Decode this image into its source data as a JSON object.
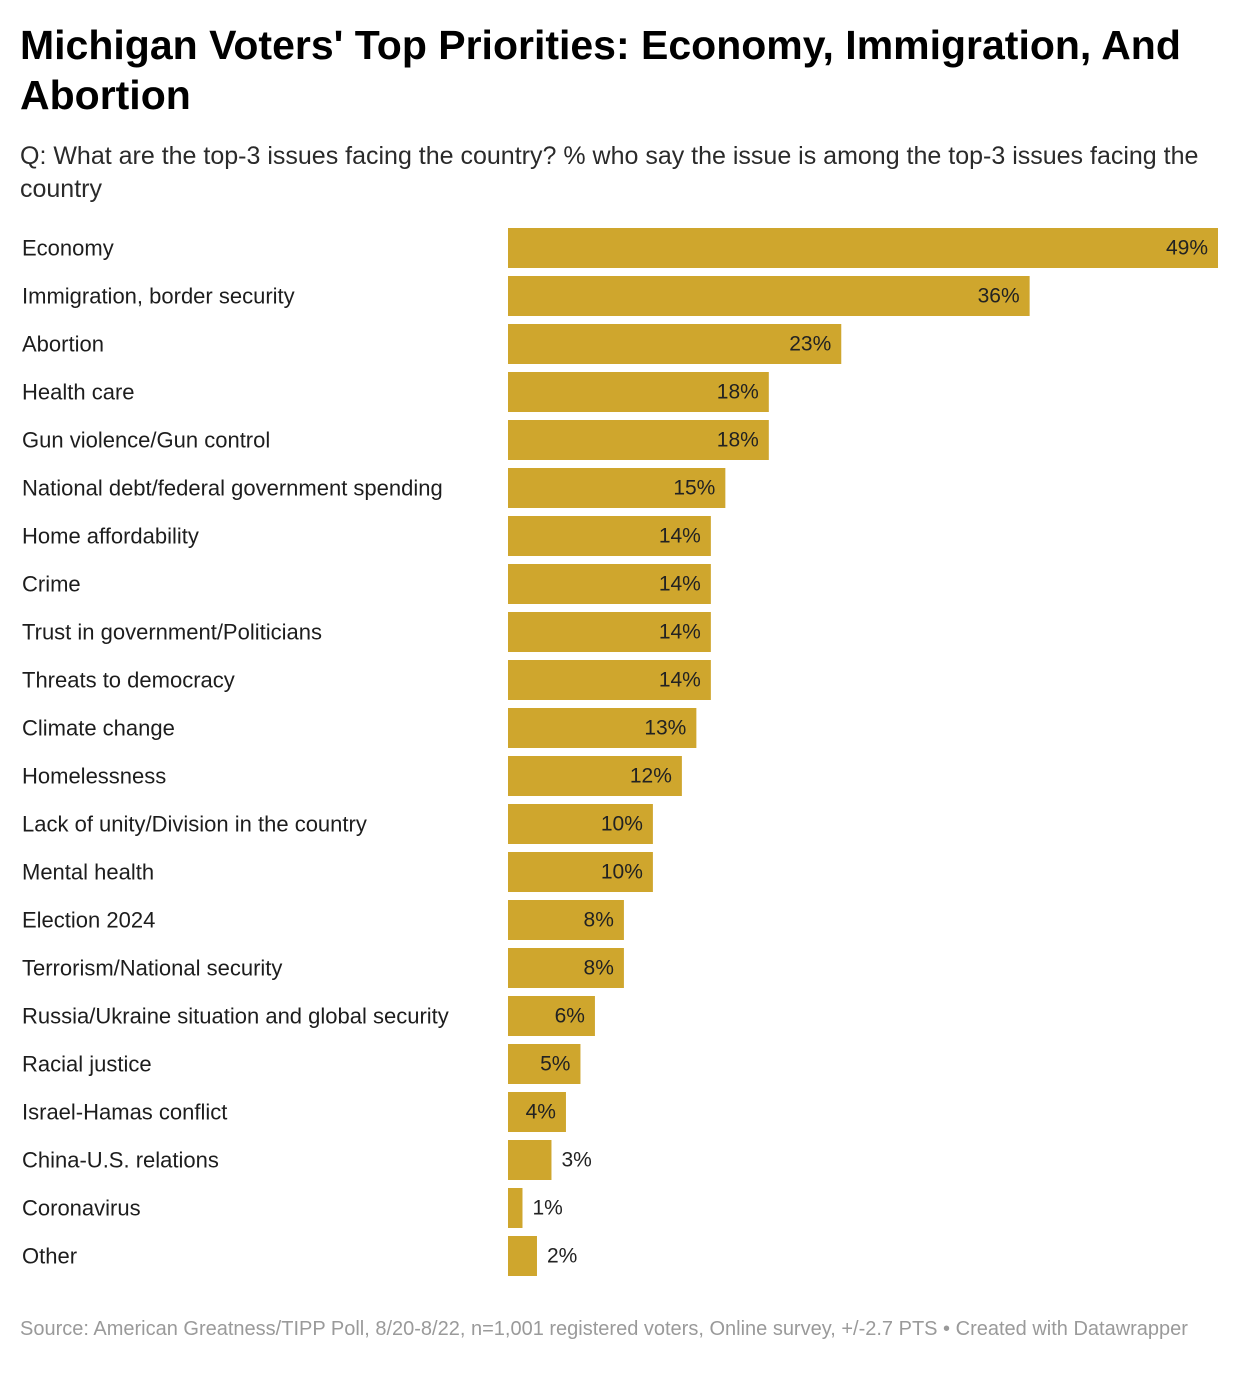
{
  "title": "Michigan Voters' Top Priorities: Economy, Immigration, And Abortion",
  "subtitle": "Q: What are the top-3 issues facing the country? % who say the issue is among the top-3 issues facing the country",
  "footer": {
    "source": "Source: American Greatness/TIPP Poll, 8/20-8/22, n=1,001 registered voters, Online survey, +/-2.7 PTS",
    "separator": " • ",
    "credit": "Created with Datawrapper"
  },
  "colors": {
    "bar": "#cfa62d",
    "label": "#1d1d1d",
    "value": "#222222"
  },
  "chart_data": {
    "type": "bar",
    "orientation": "horizontal",
    "title": "Michigan Voters' Top Priorities: Economy, Immigration, And Abortion",
    "xlabel": "",
    "ylabel": "",
    "unit": "%",
    "xlim": [
      0,
      49
    ],
    "grid": false,
    "legend": "none",
    "categories": [
      "Economy",
      "Immigration, border security",
      "Abortion",
      "Health care",
      "Gun violence/Gun control",
      "National debt/federal government spending",
      "Home affordability",
      "Crime",
      "Trust in government/Politicians",
      "Threats to democracy",
      "Climate change",
      "Homelessness",
      "Lack of unity/Division in the country",
      "Mental health",
      "Election 2024",
      "Terrorism/National security",
      "Russia/Ukraine situation and global security",
      "Racial justice",
      "Israel-Hamas conflict",
      "China-U.S. relations",
      "Coronavirus",
      "Other"
    ],
    "values": [
      49,
      36,
      23,
      18,
      18,
      15,
      14,
      14,
      14,
      14,
      13,
      12,
      10,
      10,
      8,
      8,
      6,
      5,
      4,
      3,
      1,
      2
    ],
    "value_labels": [
      "49%",
      "36%",
      "23%",
      "18%",
      "18%",
      "15%",
      "14%",
      "14%",
      "14%",
      "14%",
      "13%",
      "12%",
      "10%",
      "10%",
      "8%",
      "8%",
      "6%",
      "5%",
      "4%",
      "3%",
      "1%",
      "2%"
    ]
  }
}
